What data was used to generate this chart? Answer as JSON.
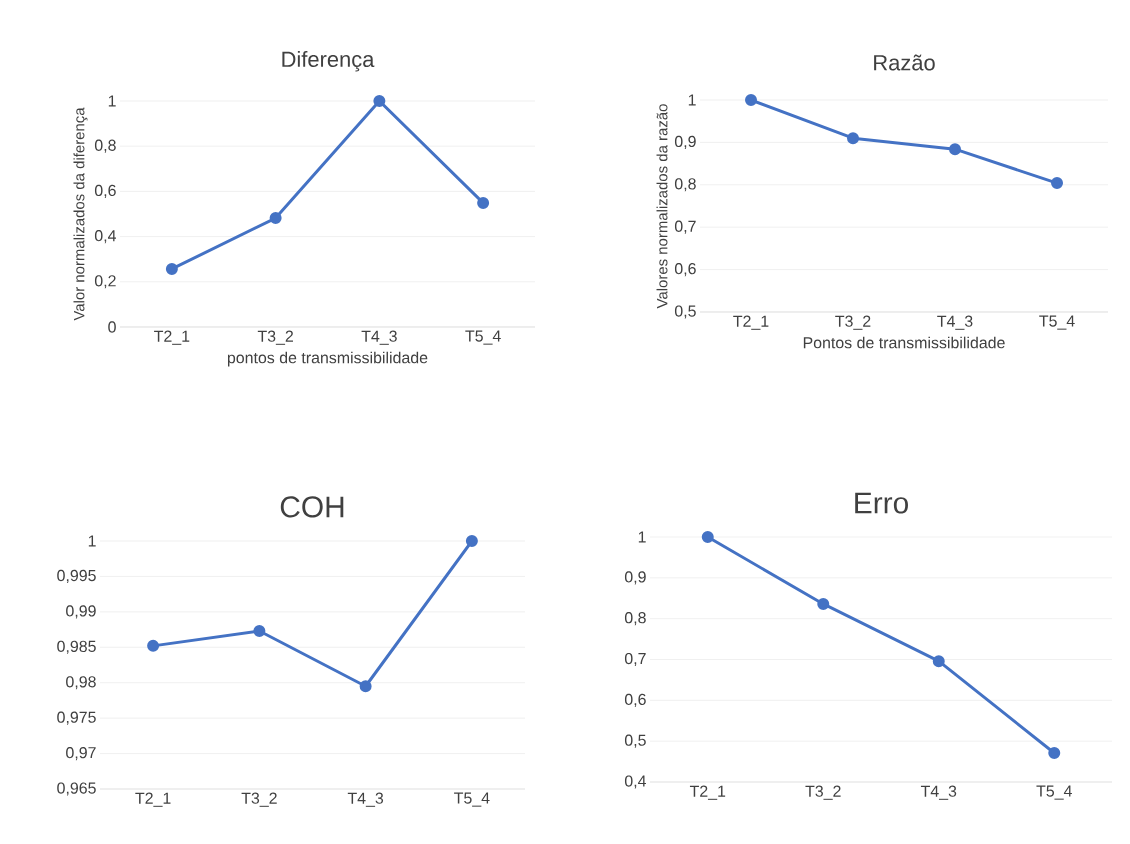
{
  "chart_data": [
    {
      "type": "line",
      "title": "Diferença",
      "xlabel": "pontos de transmissibilidade",
      "ylabel": "Valor normalizados da diferença",
      "categories": [
        "T2_1",
        "T3_2",
        "T4_3",
        "T5_4"
      ],
      "series": [
        {
          "color": "#4472c4",
          "values": [
            0.257,
            0.482,
            1.0,
            0.549
          ]
        }
      ],
      "ylim": [
        0,
        1
      ],
      "yticks": [
        0,
        {
          "value": 0.2,
          "label": "0,2"
        },
        {
          "value": 0.4,
          "label": "0,4"
        },
        {
          "value": 0.6,
          "label": "0,6"
        },
        {
          "value": 0.8,
          "label": "0,8"
        },
        1
      ],
      "grid": "y",
      "marker": "circle"
    },
    {
      "type": "line",
      "title": "Razão",
      "xlabel": "Pontos de transmissibilidade",
      "ylabel": "Valores normalizados da razão",
      "categories": [
        "T2_1",
        "T3_2",
        "T4_3",
        "T5_4"
      ],
      "series": [
        {
          "color": "#4472c4",
          "values": [
            1.0,
            0.91,
            0.884,
            0.804
          ]
        }
      ],
      "ylim": [
        0.5,
        1
      ],
      "yticks": [
        {
          "value": 0.5,
          "label": "0,5"
        },
        {
          "value": 0.6,
          "label": "0,6"
        },
        {
          "value": 0.7,
          "label": "0,7"
        },
        {
          "value": 0.8,
          "label": "0,8"
        },
        {
          "value": 0.9,
          "label": "0,9"
        },
        1
      ],
      "grid": "y",
      "marker": "circle"
    },
    {
      "type": "line",
      "title": "COH",
      "categories": [
        "T2_1",
        "T3_2",
        "T4_3",
        "T5_4"
      ],
      "series": [
        {
          "color": "#4472c4",
          "values": [
            0.9852,
            0.9873,
            0.9795,
            1.0
          ]
        }
      ],
      "ylim": [
        0.965,
        1
      ],
      "yticks": [
        {
          "value": 0.965,
          "label": "0,965"
        },
        {
          "value": 0.97,
          "label": "0,97"
        },
        {
          "value": 0.975,
          "label": "0,975"
        },
        {
          "value": 0.98,
          "label": "0,98"
        },
        {
          "value": 0.985,
          "label": "0,985"
        },
        {
          "value": 0.99,
          "label": "0,99"
        },
        {
          "value": 0.995,
          "label": "0,995"
        },
        1
      ],
      "grid": "y",
      "marker": "circle"
    },
    {
      "type": "line",
      "title": "Erro",
      "categories": [
        "T2_1",
        "T3_2",
        "T4_3",
        "T5_4"
      ],
      "series": [
        {
          "color": "#4472c4",
          "values": [
            1.0,
            0.836,
            0.696,
            0.471
          ]
        }
      ],
      "ylim": [
        0.4,
        1
      ],
      "yticks": [
        {
          "value": 0.4,
          "label": "0,4"
        },
        {
          "value": 0.5,
          "label": "0,5"
        },
        {
          "value": 0.6,
          "label": "0,6"
        },
        {
          "value": 0.7,
          "label": "0,7"
        },
        {
          "value": 0.8,
          "label": "0,8"
        },
        {
          "value": 0.9,
          "label": "0,9"
        },
        1
      ],
      "grid": "y",
      "marker": "circle"
    }
  ]
}
